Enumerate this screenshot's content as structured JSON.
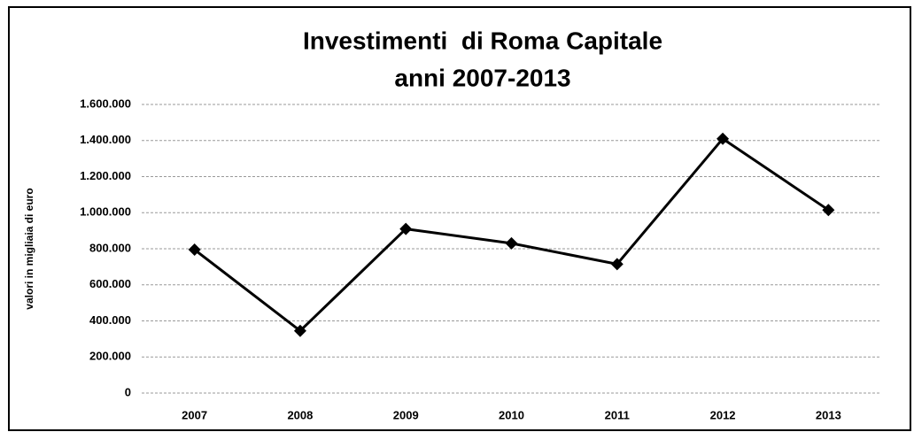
{
  "chart_data": {
    "type": "line",
    "title": "Investimenti  di Roma Capitale",
    "subtitle": "anni 2007-2013",
    "y_label": "valori in migliaia di euro",
    "categories": [
      "2007",
      "2008",
      "2009",
      "2010",
      "2011",
      "2012",
      "2013"
    ],
    "series": [
      {
        "name": "Investimenti",
        "color": "#000000",
        "values": [
          795000,
          345000,
          910000,
          830000,
          715000,
          1410000,
          1015000
        ]
      }
    ],
    "ylim": [
      0,
      1600000
    ],
    "yticks": [
      0,
      {
        "value": 200000,
        "label": "200.000"
      },
      {
        "value": 400000,
        "label": "400.000"
      },
      {
        "value": 600000,
        "label": "600.000"
      },
      {
        "value": 800000,
        "label": "800.000"
      },
      {
        "value": 1000000,
        "label": "1.000.000"
      },
      {
        "value": 1200000,
        "label": "1.200.000"
      },
      {
        "value": 1400000,
        "label": "1.400.000"
      },
      {
        "value": 1600000,
        "label": "1.600.000"
      }
    ],
    "grid": true
  }
}
